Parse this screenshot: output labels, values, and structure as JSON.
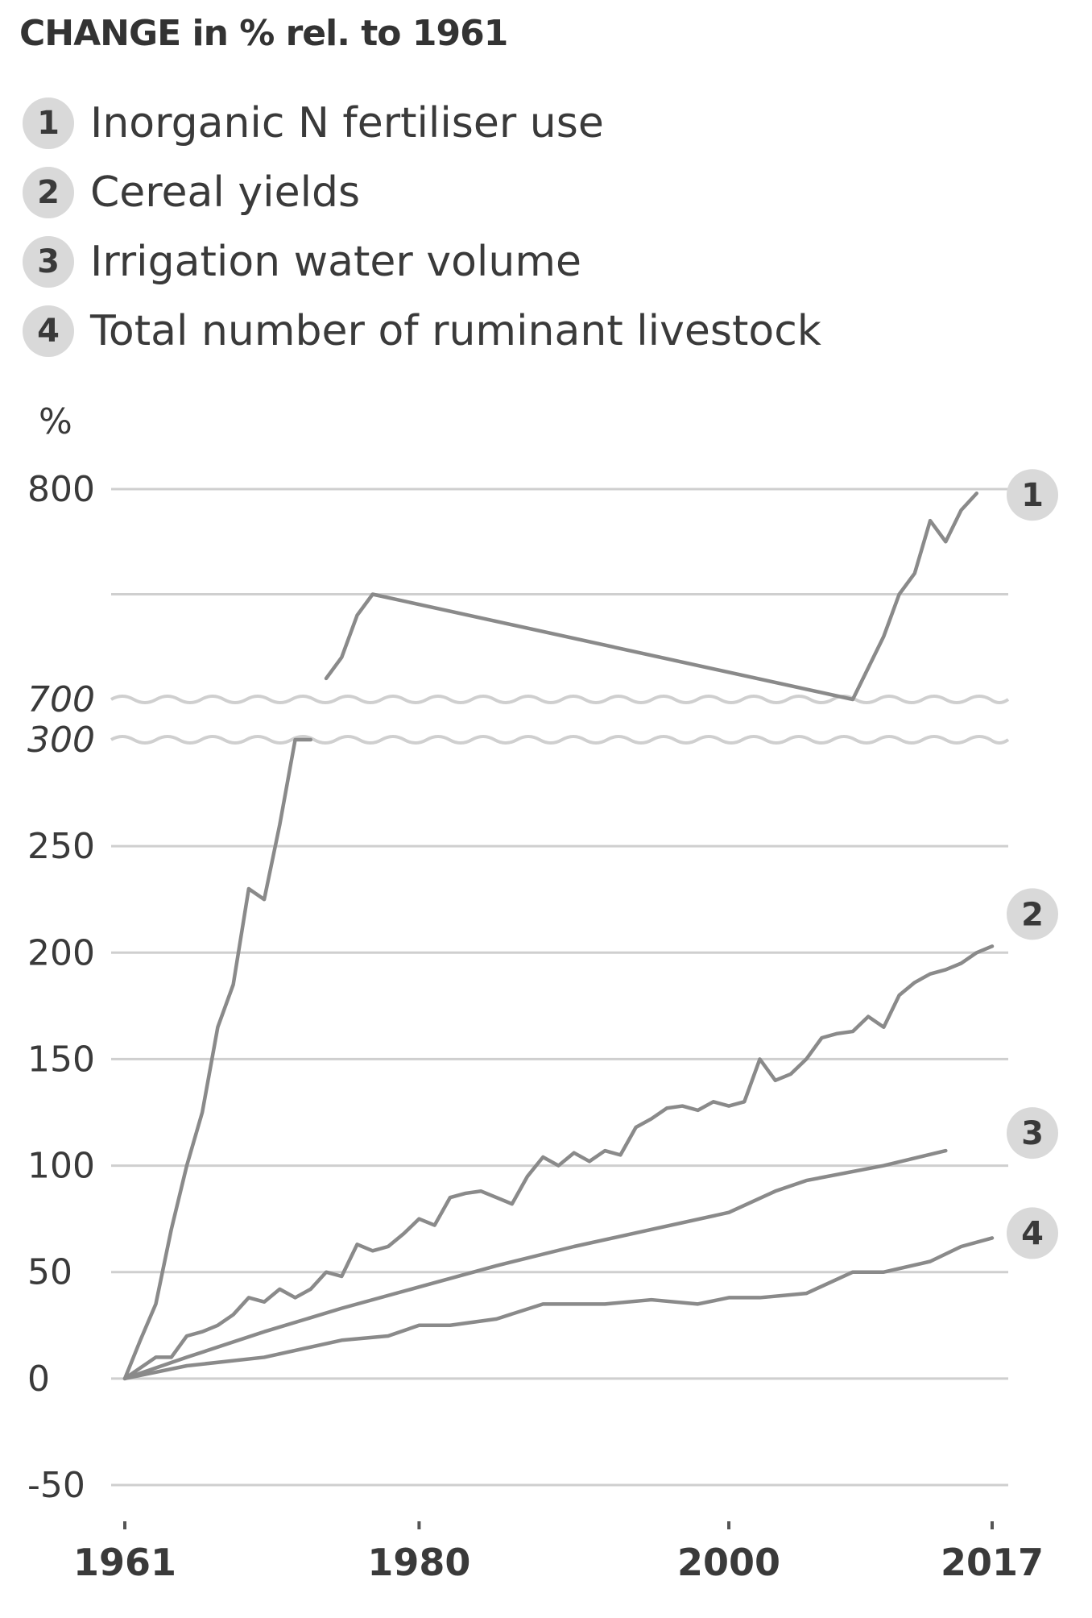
{
  "title": "CHANGE in % rel. to 1961",
  "legend": [
    {
      "num": "1",
      "label": "Inorganic N fertiliser use"
    },
    {
      "num": "2",
      "label": "Cereal yields"
    },
    {
      "num": "3",
      "label": "Irrigation water volume"
    },
    {
      "num": "4",
      "label": "Total number of ruminant livestock"
    }
  ],
  "colors": {
    "line": "#8a8a8a",
    "grid": "#cfcfcf",
    "badge": "#d9d9d9",
    "text": "#3a3a3a"
  },
  "chart_data": {
    "type": "line",
    "ylabel": "%",
    "y_ticks": [
      "800",
      "700",
      "300",
      "250",
      "200",
      "150",
      "100",
      "50",
      "0",
      "-50"
    ],
    "y_break": {
      "lower": 300,
      "upper": 700
    },
    "ylim_lower": [
      -50,
      300
    ],
    "ylim_upper": [
      700,
      800
    ],
    "x_ticks": [
      "1961",
      "1980",
      "2000",
      "2017"
    ],
    "xlim": [
      1961,
      2017
    ],
    "series": [
      {
        "name": "1",
        "x": [
          1961,
          1962,
          1963,
          1964,
          1965,
          1966,
          1967,
          1968,
          1969,
          1970,
          1971,
          1972,
          1973,
          1974,
          1975,
          1976,
          1977,
          2008,
          2009,
          2010,
          2011,
          2012,
          2013,
          2014,
          2015,
          2016
        ],
        "y": [
          0,
          18,
          35,
          70,
          100,
          125,
          165,
          185,
          230,
          225,
          260,
          300,
          300,
          710,
          720,
          740,
          750,
          700,
          715,
          730,
          750,
          760,
          785,
          775,
          790,
          798
        ]
      },
      {
        "name": "2",
        "x": [
          1961,
          1962,
          1963,
          1964,
          1965,
          1966,
          1967,
          1968,
          1969,
          1970,
          1971,
          1972,
          1973,
          1974,
          1975,
          1976,
          1977,
          1978,
          1979,
          1980,
          1981,
          1982,
          1983,
          1984,
          1985,
          1986,
          1987,
          1988,
          1989,
          1990,
          1991,
          1992,
          1993,
          1994,
          1995,
          1996,
          1997,
          1998,
          1999,
          2000,
          2001,
          2002,
          2003,
          2004,
          2005,
          2006,
          2007,
          2008,
          2009,
          2010,
          2011,
          2012,
          2013,
          2014,
          2015,
          2016,
          2017
        ],
        "y": [
          0,
          5,
          10,
          10,
          20,
          22,
          25,
          30,
          38,
          36,
          42,
          38,
          42,
          50,
          48,
          63,
          60,
          62,
          68,
          75,
          72,
          85,
          87,
          88,
          85,
          82,
          95,
          104,
          100,
          106,
          102,
          107,
          105,
          118,
          122,
          127,
          128,
          126,
          130,
          128,
          130,
          150,
          140,
          143,
          150,
          160,
          162,
          163,
          170,
          165,
          180,
          186,
          190,
          192,
          195,
          200,
          203
        ]
      },
      {
        "name": "3",
        "x": [
          1961,
          1965,
          1970,
          1975,
          1980,
          1985,
          1990,
          1995,
          2000,
          2003,
          2005,
          2010,
          2014
        ],
        "y": [
          0,
          10,
          22,
          33,
          43,
          53,
          62,
          70,
          78,
          88,
          93,
          100,
          107
        ]
      },
      {
        "name": "4",
        "x": [
          1961,
          1965,
          1970,
          1975,
          1978,
          1980,
          1982,
          1985,
          1988,
          1990,
          1992,
          1995,
          1998,
          2000,
          2002,
          2005,
          2008,
          2010,
          2013,
          2015,
          2017
        ],
        "y": [
          0,
          6,
          10,
          18,
          20,
          25,
          25,
          28,
          35,
          35,
          35,
          37,
          35,
          38,
          38,
          40,
          50,
          50,
          55,
          62,
          66
        ]
      }
    ]
  }
}
